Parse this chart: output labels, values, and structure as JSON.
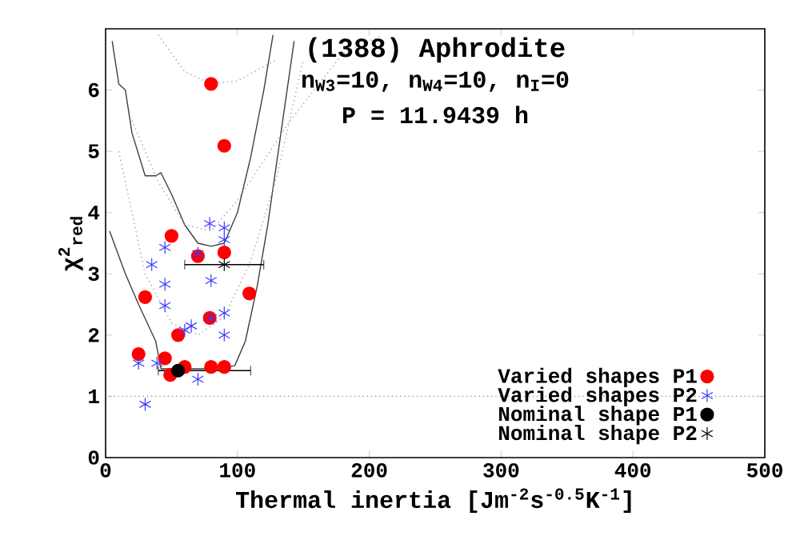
{
  "chart_data": {
    "type": "scatter",
    "title": "(1388) Aphrodite",
    "subtitle": "n$_{W3}$=10, n$_{W4}$=10, n$_{I}$=0",
    "annotations": [
      "P = 11.9439 h"
    ],
    "xlabel": "Thermal inertia [Jm$^{-2}$s$^{-0.5}$K$^{-1}$]",
    "ylabel": "χ$^{2}$$_{red}$",
    "xlim": [
      0,
      500
    ],
    "ylim": [
      0,
      7
    ],
    "xticks": [
      0,
      100,
      200,
      300,
      400,
      500
    ],
    "yticks": [
      0,
      1,
      2,
      3,
      4,
      5,
      6
    ],
    "legend": "bottom right",
    "ref_lines": [
      {
        "axis": "y",
        "value": 1,
        "line_style": "dotted",
        "color": "#808080"
      }
    ],
    "series": [
      {
        "type": "line",
        "color": "#404040",
        "line_style": "solid",
        "x": [
          5,
          10,
          15,
          20,
          30,
          38,
          42,
          50,
          60,
          70,
          80,
          90,
          100,
          110,
          120,
          127
        ],
        "values": [
          6.8,
          6.1,
          6.0,
          5.3,
          4.6,
          4.6,
          4.65,
          4.3,
          3.8,
          3.5,
          3.45,
          3.5,
          4.0,
          4.9,
          6.0,
          6.9
        ]
      },
      {
        "type": "line",
        "color": "#404040",
        "line_style": "solid",
        "x": [
          3,
          15,
          25,
          38,
          42,
          60,
          80,
          98,
          106,
          115,
          123,
          133,
          143
        ],
        "values": [
          3.7,
          3.0,
          2.5,
          1.9,
          1.45,
          1.45,
          1.45,
          1.5,
          1.9,
          2.8,
          3.8,
          5.3,
          6.8
        ]
      },
      {
        "type": "line",
        "color": "#a0a0a0",
        "line_style": "dotted",
        "x": [
          20,
          40,
          60,
          80,
          100,
          140,
          180,
          210
        ],
        "values": [
          5.5,
          4.5,
          3.8,
          3.7,
          4.2,
          5.5,
          6.6,
          6.9
        ]
      },
      {
        "type": "line",
        "color": "#a0a0a0",
        "line_style": "dotted",
        "x": [
          40,
          60,
          80,
          100,
          130
        ],
        "values": [
          6.9,
          6.3,
          6.1,
          6.15,
          6.5
        ]
      },
      {
        "type": "line",
        "color": "#a0a0a0",
        "line_style": "dotted",
        "x": [
          10,
          30,
          50,
          70,
          90,
          110,
          130,
          150
        ],
        "values": [
          5.0,
          3.0,
          2.2,
          2.0,
          2.3,
          3.2,
          4.6,
          6.5
        ]
      },
      {
        "name": "Varied shapes P1",
        "marker": "circle",
        "color": "#ff0000",
        "x": [
          80,
          90,
          50,
          70,
          90,
          30,
          109,
          79,
          55,
          25,
          45,
          60,
          49,
          80,
          90
        ],
        "values": [
          6.1,
          5.09,
          3.62,
          3.29,
          3.35,
          2.62,
          2.68,
          2.28,
          2.0,
          1.69,
          1.62,
          1.48,
          1.35,
          1.48,
          1.48
        ]
      },
      {
        "name": "Varied shapes P2",
        "marker": "cross",
        "color": "#3b3bff",
        "x": [
          79,
          90,
          90,
          45,
          35,
          70,
          80,
          45,
          45,
          80,
          90,
          90,
          60,
          65,
          25,
          39,
          70,
          30
        ],
        "values": [
          3.82,
          3.75,
          3.56,
          3.43,
          3.15,
          3.33,
          2.89,
          2.83,
          2.48,
          2.28,
          2.36,
          2.0,
          2.08,
          2.15,
          1.54,
          1.54,
          1.28,
          0.87
        ]
      },
      {
        "name": "Nominal shape P1",
        "marker": "circle",
        "color": "#000000",
        "x": [
          55
        ],
        "values": [
          1.42
        ],
        "xerrors": [
          [
            40,
            110
          ]
        ]
      },
      {
        "name": "Nominal shape P2",
        "marker": "cross",
        "color": "#000000",
        "x": [
          90
        ],
        "values": [
          3.15
        ],
        "xerrors": [
          [
            60,
            120
          ]
        ]
      }
    ]
  }
}
